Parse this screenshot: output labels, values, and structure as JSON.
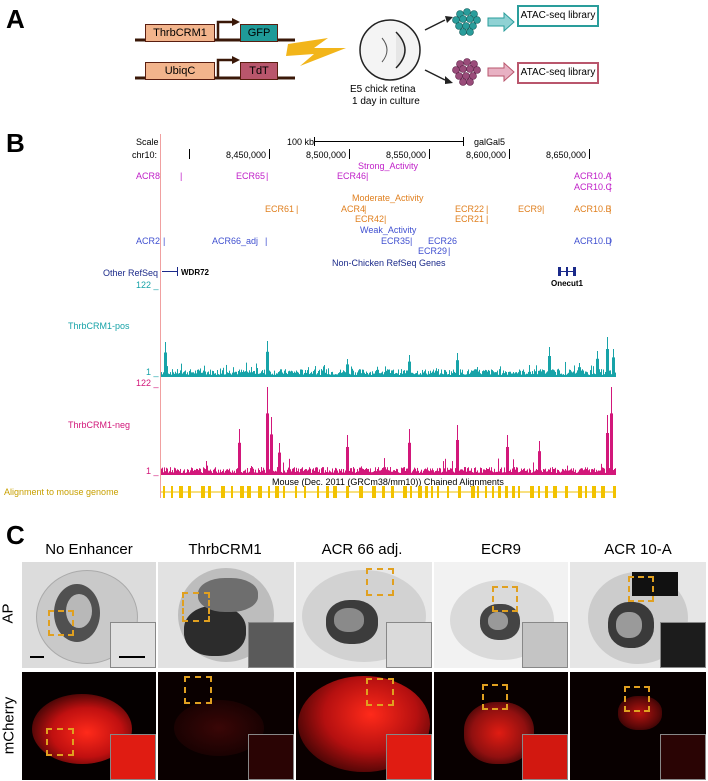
{
  "panel_a": {
    "letter": "A",
    "construct1_enhancer": "ThrbCRM1",
    "construct1_reporter": "GFP",
    "construct2_promoter": "UbiqC",
    "construct2_reporter": "TdT",
    "retina_caption_line1": "E5 chick retina",
    "retina_caption_line2": "1 day in culture",
    "library_top": "ATAC-seq library",
    "library_bottom": "ATAC-seq library",
    "colors": {
      "gfp": "#1f9a98",
      "tdt": "#b9566c",
      "construct_fill": "#f2b48c",
      "teal_cells": "#2a9d9b",
      "pink_cells": "#9a4c7a",
      "teal_arrow": "#8fd2d4",
      "pink_arrow": "#e8b1c3"
    }
  },
  "panel_b": {
    "letter": "B",
    "scale_label": "Scale",
    "scale_value": "100 kb",
    "assembly": "galGal5",
    "chrom": "chr10:",
    "coords": [
      "8,450,000",
      "8,500,000",
      "8,550,000",
      "8,600,000",
      "8,650,000"
    ],
    "strong_header": "Strong_Activity",
    "strong": [
      "ACR8",
      "ECR65",
      "ECR46",
      "ACR10.A",
      "ACR10.C"
    ],
    "moderate_header": "Moderate_Activity",
    "moderate": [
      "ECR61",
      "ACR4",
      "ECR42",
      "ECR22",
      "ECR21",
      "ECR9",
      "ACR10.B"
    ],
    "weak_header": "Weak_Activity",
    "weak": [
      "ACR2",
      "ACR66_adj",
      "ECR35",
      "ECR29",
      "ECR26",
      "ACR10.D"
    ],
    "nonchicken_header": "Non-Chicken RefSeq Genes",
    "other_refseq": "Other RefSeq",
    "gene_left": "WDR72",
    "gene_right": "Onecut1",
    "pos_max": "122 _",
    "pos_label": "ThrbCRM1-pos",
    "pos_min": "1 _",
    "neg_max": "122 _",
    "neg_label": "ThrbCRM1-neg",
    "neg_min": "1 _",
    "chain_label": "Mouse (Dec. 2011 (GRCm38/mm10)) Chained Alignments",
    "align_label": "Alignment to mouse genome",
    "colors": {
      "pos_track": "#17a3a8",
      "neg_track": "#d2177a",
      "strong": "#c020c8",
      "moderate": "#e08020",
      "weak": "#4050d0",
      "align": "#f2c200"
    }
  },
  "panel_c": {
    "letter": "C",
    "columns": [
      "No Enhancer",
      "ThrbCRM1",
      "ACR 66 adj.",
      "ECR9",
      "ACR 10-A"
    ],
    "row_ap": "AP",
    "row_mcherry": "mCherry"
  }
}
